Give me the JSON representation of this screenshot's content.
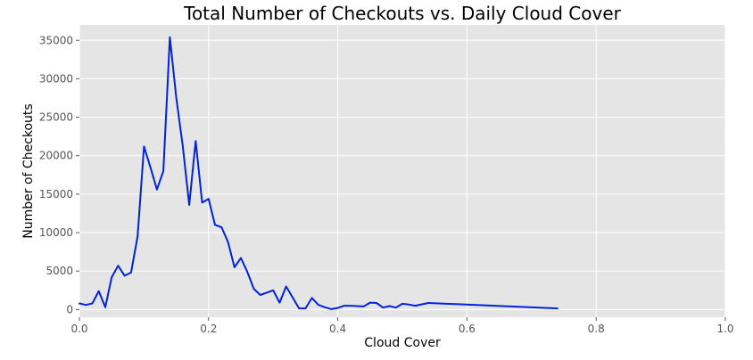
{
  "chart_data": {
    "type": "line",
    "title": "Total Number of Checkouts vs. Daily Cloud Cover",
    "xlabel": "Cloud Cover",
    "ylabel": "Number of Checkouts",
    "xlim": [
      0,
      1.0
    ],
    "ylim": [
      -1000,
      37000
    ],
    "xticks": [
      0.0,
      0.2,
      0.4,
      0.6,
      0.8,
      1.0
    ],
    "xtick_labels": [
      "0.0",
      "0.2",
      "0.4",
      "0.6",
      "0.8",
      "1.0"
    ],
    "yticks": [
      0,
      5000,
      10000,
      15000,
      20000,
      25000,
      30000,
      35000
    ],
    "ytick_labels": [
      "0",
      "5000",
      "10000",
      "15000",
      "20000",
      "25000",
      "30000",
      "35000"
    ],
    "grid": true,
    "colors": {
      "plot_background": "#e5e5e5",
      "grid": "#ffffff",
      "line": "#0022dd"
    },
    "series": [
      {
        "x": [
          0.0,
          0.01,
          0.02,
          0.03,
          0.04,
          0.05,
          0.06,
          0.07,
          0.08,
          0.09,
          0.1,
          0.11,
          0.12,
          0.13,
          0.14,
          0.15,
          0.16,
          0.17,
          0.18,
          0.19,
          0.2,
          0.21,
          0.22,
          0.23,
          0.24,
          0.25,
          0.26,
          0.27,
          0.28,
          0.29,
          0.3,
          0.31,
          0.32,
          0.33,
          0.34,
          0.35,
          0.36,
          0.37,
          0.38,
          0.39,
          0.4,
          0.41,
          0.42,
          0.43,
          0.44,
          0.45,
          0.46,
          0.47,
          0.48,
          0.49,
          0.5,
          0.51,
          0.52,
          0.54,
          0.74
        ],
        "y": [
          800,
          600,
          800,
          2400,
          300,
          4200,
          5700,
          4400,
          4800,
          9500,
          21200,
          18500,
          15600,
          18000,
          35400,
          27500,
          21300,
          13600,
          21900,
          13900,
          14400,
          11000,
          10700,
          8800,
          5500,
          6700,
          4900,
          2700,
          1900,
          2200,
          2500,
          900,
          3000,
          1600,
          150,
          150,
          1500,
          600,
          300,
          50,
          200,
          500,
          500,
          450,
          400,
          900,
          850,
          250,
          450,
          250,
          750,
          650,
          500,
          850,
          150
        ]
      }
    ]
  }
}
